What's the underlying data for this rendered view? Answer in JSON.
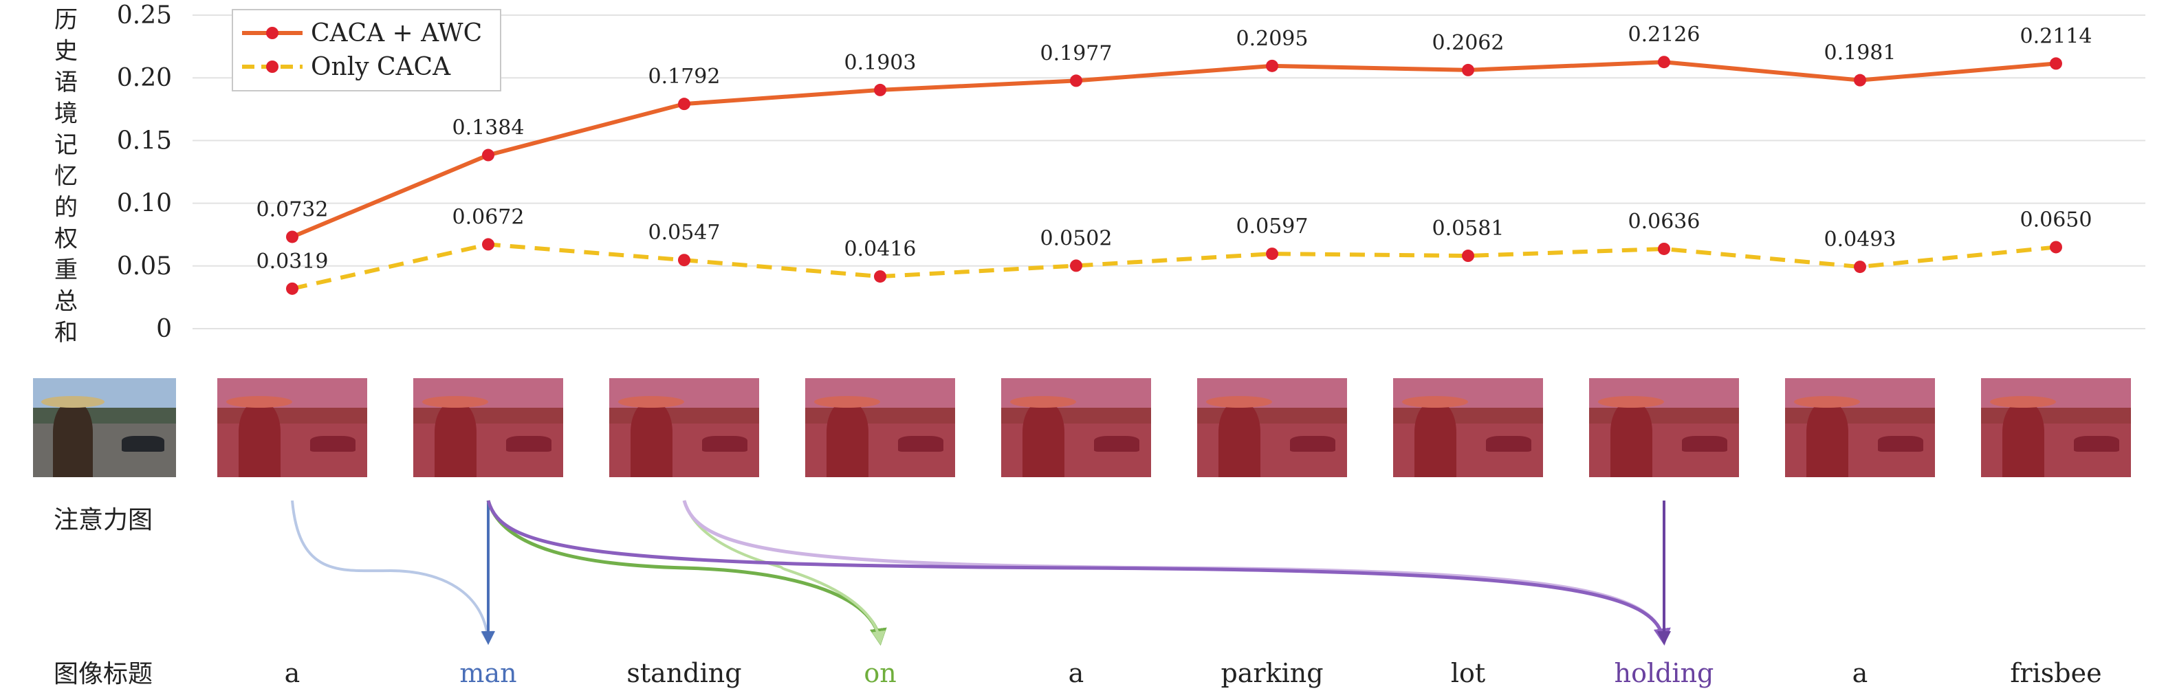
{
  "chart_data": {
    "type": "line",
    "ylabel": "历史语境记忆的权重总和",
    "ylim": [
      0,
      0.25
    ],
    "yticks": [
      "0",
      "0.05",
      "0.10",
      "0.15",
      "0.20",
      "0.25"
    ],
    "grid": true,
    "legend_position": "top-left",
    "series": [
      {
        "name": "CACA + AWC",
        "color": "#e8642b",
        "marker_color": "#e0202e",
        "style": "solid",
        "values": [
          0.0732,
          0.1384,
          0.1792,
          0.1903,
          0.1977,
          0.2095,
          0.2062,
          0.2126,
          0.1981,
          0.2114
        ],
        "labels": [
          "0.0732",
          "0.1384",
          "0.1792",
          "0.1903",
          "0.1977",
          "0.2095",
          "0.2062",
          "0.2126",
          "0.1981",
          "0.2114"
        ]
      },
      {
        "name": "Only CACA",
        "color": "#f0bf1e",
        "marker_color": "#e0202e",
        "style": "dashed",
        "values": [
          0.0319,
          0.0672,
          0.0547,
          0.0416,
          0.0502,
          0.0597,
          0.0581,
          0.0636,
          0.0493,
          0.065
        ],
        "labels": [
          "0.0319",
          "0.0672",
          "0.0547",
          "0.0416",
          "0.0502",
          "0.0597",
          "0.0581",
          "0.0636",
          "0.0493",
          "0.0650"
        ]
      }
    ]
  },
  "attention": {
    "row_label": "注意力图",
    "image_count": 11,
    "overlay_count": 10
  },
  "caption": {
    "row_label": "图像标题",
    "words": [
      {
        "text": "a",
        "color": "#222222"
      },
      {
        "text": "man",
        "color": "#4a6fb8"
      },
      {
        "text": "standing",
        "color": "#222222"
      },
      {
        "text": "on",
        "color": "#6fae3c"
      },
      {
        "text": "a",
        "color": "#222222"
      },
      {
        "text": "parking",
        "color": "#222222"
      },
      {
        "text": "lot",
        "color": "#222222"
      },
      {
        "text": "holding",
        "color": "#6a42a0"
      },
      {
        "text": "a",
        "color": "#222222"
      },
      {
        "text": "frisbee",
        "color": "#222222"
      }
    ]
  },
  "arrows": [
    {
      "from": 0,
      "to": 1,
      "color": "#b8c8e6",
      "width": 4
    },
    {
      "from": 1,
      "to": 1,
      "color": "#4a6fb8",
      "width": 4
    },
    {
      "from": 1,
      "to": 3,
      "color": "#72b04a",
      "width": 5
    },
    {
      "from": 2,
      "to": 3,
      "color": "#b9dd9c",
      "width": 4
    },
    {
      "from": 2,
      "to": 7,
      "color": "#cdb4e3",
      "width": 5
    },
    {
      "from": 1,
      "to": 7,
      "color": "#8a5fbe",
      "width": 5
    },
    {
      "from": 7,
      "to": 7,
      "color": "#6a42a0",
      "width": 4
    }
  ]
}
